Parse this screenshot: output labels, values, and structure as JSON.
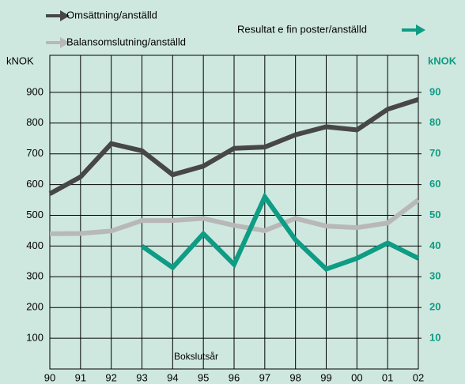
{
  "chart_data": {
    "type": "line",
    "ylabel": "kNOK",
    "y2label": "kNOK",
    "annotation": "Bokslutsår",
    "categories": [
      "90",
      "91",
      "92",
      "93",
      "94",
      "95",
      "96",
      "97",
      "98",
      "99",
      "00",
      "01",
      "02"
    ],
    "series": [
      {
        "name": "Omsättning/anställd",
        "color": "#474747",
        "values": [
          570,
          625,
          733,
          710,
          632,
          660,
          718,
          722,
          762,
          788,
          778,
          845,
          877
        ]
      },
      {
        "name": "Balansomslutning/anställd",
        "color": "#b8b8b8",
        "values": [
          440,
          441,
          449,
          483,
          483,
          490,
          467,
          450,
          490,
          465,
          460,
          475,
          550
        ]
      },
      {
        "name": "Resultat e fin poster/anställd",
        "color": "#0e9c84",
        "axis": "y2",
        "values": [
          null,
          null,
          null,
          40,
          33,
          44,
          34,
          56,
          42,
          32.5,
          36,
          41,
          36
        ]
      }
    ],
    "ylim": [
      0,
      1000
    ],
    "yticks": [
      100,
      200,
      300,
      400,
      500,
      600,
      700,
      800,
      900
    ],
    "y2lim": [
      0,
      100
    ],
    "y2ticks": [
      10,
      20,
      30,
      40,
      50,
      60,
      70,
      80,
      90
    ],
    "grid": true
  }
}
